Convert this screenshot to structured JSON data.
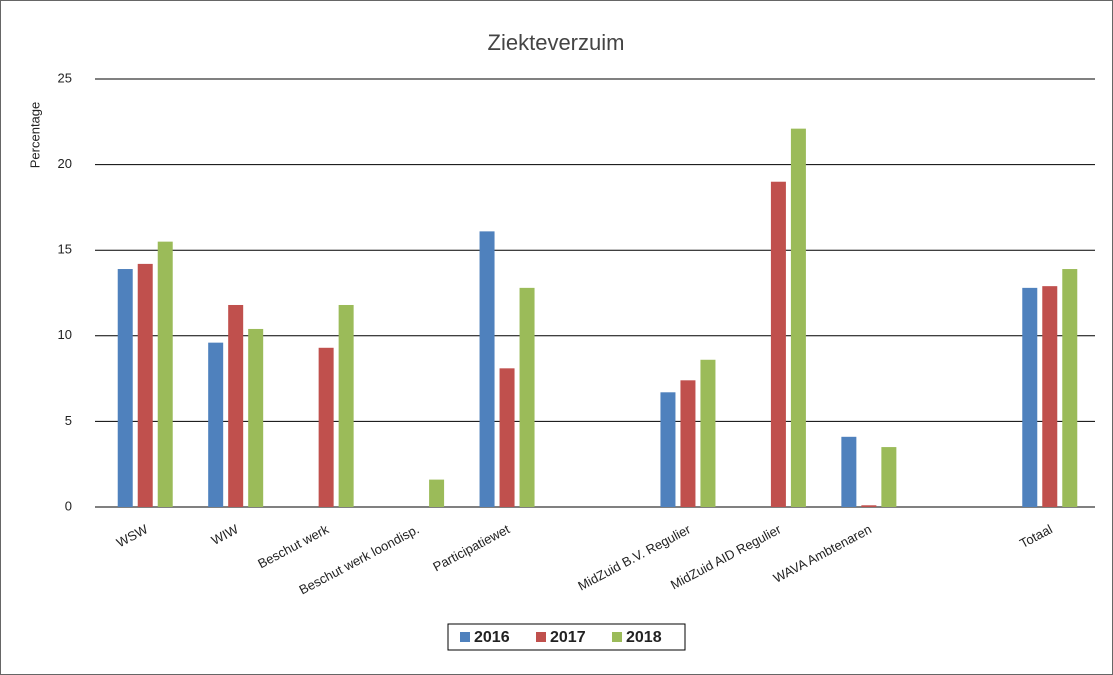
{
  "chart_data": {
    "type": "bar",
    "title": "Ziekteverzuim",
    "y_label": "Percentage",
    "categories": [
      "WSW",
      "WIW",
      "Beschut werk",
      "Beschut werk loondisp.",
      "Participatiewet",
      null,
      "MidZuid B.V. Regulier",
      "MidZuid AID Regulier",
      "WAVA Ambtenaren",
      null,
      "Totaal"
    ],
    "series": [
      {
        "name": "2016",
        "color": "#4f81bd",
        "values": [
          13.9,
          9.6,
          null,
          null,
          16.1,
          null,
          6.7,
          null,
          4.1,
          null,
          12.8
        ]
      },
      {
        "name": "2017",
        "color": "#c0504d",
        "values": [
          14.2,
          11.8,
          9.3,
          null,
          8.1,
          null,
          7.4,
          19,
          0.1,
          null,
          12.9
        ]
      },
      {
        "name": "2018",
        "color": "#9bbb59",
        "values": [
          15.5,
          10.4,
          11.8,
          1.6,
          12.8,
          null,
          8.6,
          22.1,
          3.5,
          null,
          13.9
        ]
      }
    ],
    "ylim": [
      0,
      25
    ],
    "yticks": [
      0,
      5,
      10,
      15,
      20,
      25
    ],
    "grid": true,
    "legend": "bottom"
  }
}
